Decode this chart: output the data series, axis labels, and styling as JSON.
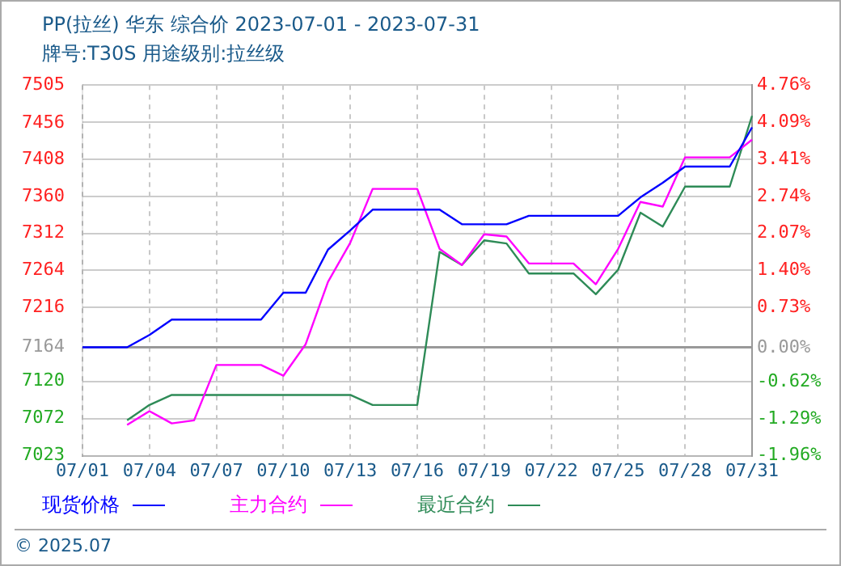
{
  "chart_data": {
    "type": "line",
    "title": "PP(拉丝) 华东 综合价 2023-07-01 - 2023-07-31",
    "subtitle": "牌号:T30S 用途级别:拉丝级",
    "categories": [
      "07/01",
      null,
      null,
      "07/04",
      null,
      null,
      "07/07",
      null,
      null,
      "07/10",
      null,
      null,
      "07/13",
      null,
      null,
      "07/16",
      null,
      null,
      "07/19",
      null,
      null,
      "07/22",
      null,
      null,
      "07/25",
      null,
      null,
      "07/28",
      null,
      null,
      "07/31"
    ],
    "series": [
      {
        "name": "现货价格",
        "color": "#0000ff",
        "values": [
          7164,
          7164,
          7164,
          7180,
          7200,
          7200,
          7200,
          7200,
          7200,
          7235,
          7235,
          7291,
          7316,
          7343,
          7343,
          7343,
          7343,
          7324,
          7324,
          7324,
          7335,
          7335,
          7335,
          7335,
          7335,
          7359,
          7378,
          7399,
          7399,
          7399,
          7450
        ]
      },
      {
        "name": "主力合约",
        "color": "#ff00ff",
        "values": [
          null,
          null,
          7063,
          7081,
          7065,
          7069,
          7141,
          7141,
          7141,
          7127,
          7168,
          7249,
          7300,
          7370,
          7370,
          7370,
          7292,
          7271,
          7311,
          7308,
          7273,
          7273,
          7273,
          7246,
          7292,
          7353,
          7347,
          7411,
          7411,
          7411,
          7434
        ]
      },
      {
        "name": "最近合约",
        "color": "#2e8b57",
        "values": [
          null,
          null,
          7069,
          7089,
          7102,
          7102,
          7102,
          7102,
          7102,
          7102,
          7102,
          7102,
          7102,
          7089,
          7089,
          7089,
          7288,
          7271,
          7303,
          7299,
          7260,
          7260,
          7260,
          7233,
          7265,
          7339,
          7321,
          7373,
          7373,
          7373,
          7465
        ]
      }
    ],
    "ylim": [
      7023,
      7505
    ],
    "yticks": [
      7023,
      7072,
      7120,
      7164,
      7216,
      7264,
      7312,
      7360,
      7408,
      7456,
      7505
    ],
    "y2lim": [
      -1.96,
      4.76
    ],
    "y2ticks": [
      {
        "value": -1.96,
        "label": "-1.96%"
      },
      {
        "value": -1.29,
        "label": "-1.29%"
      },
      {
        "value": -0.62,
        "label": "-0.62%"
      },
      {
        "value": 0,
        "label": "0.00%"
      },
      {
        "value": 0.73,
        "label": "0.73%"
      },
      {
        "value": 1.4,
        "label": "1.40%"
      },
      {
        "value": 2.07,
        "label": "2.07%"
      },
      {
        "value": 2.74,
        "label": "2.74%"
      },
      {
        "value": 3.41,
        "label": "3.41%"
      },
      {
        "value": 4.09,
        "label": "4.09%"
      },
      {
        "value": 4.76,
        "label": "4.76%"
      }
    ],
    "grid": true,
    "legend": "bottom",
    "marker": "none",
    "line_style": "solid",
    "annotations": [
      "© 2025.07"
    ]
  }
}
